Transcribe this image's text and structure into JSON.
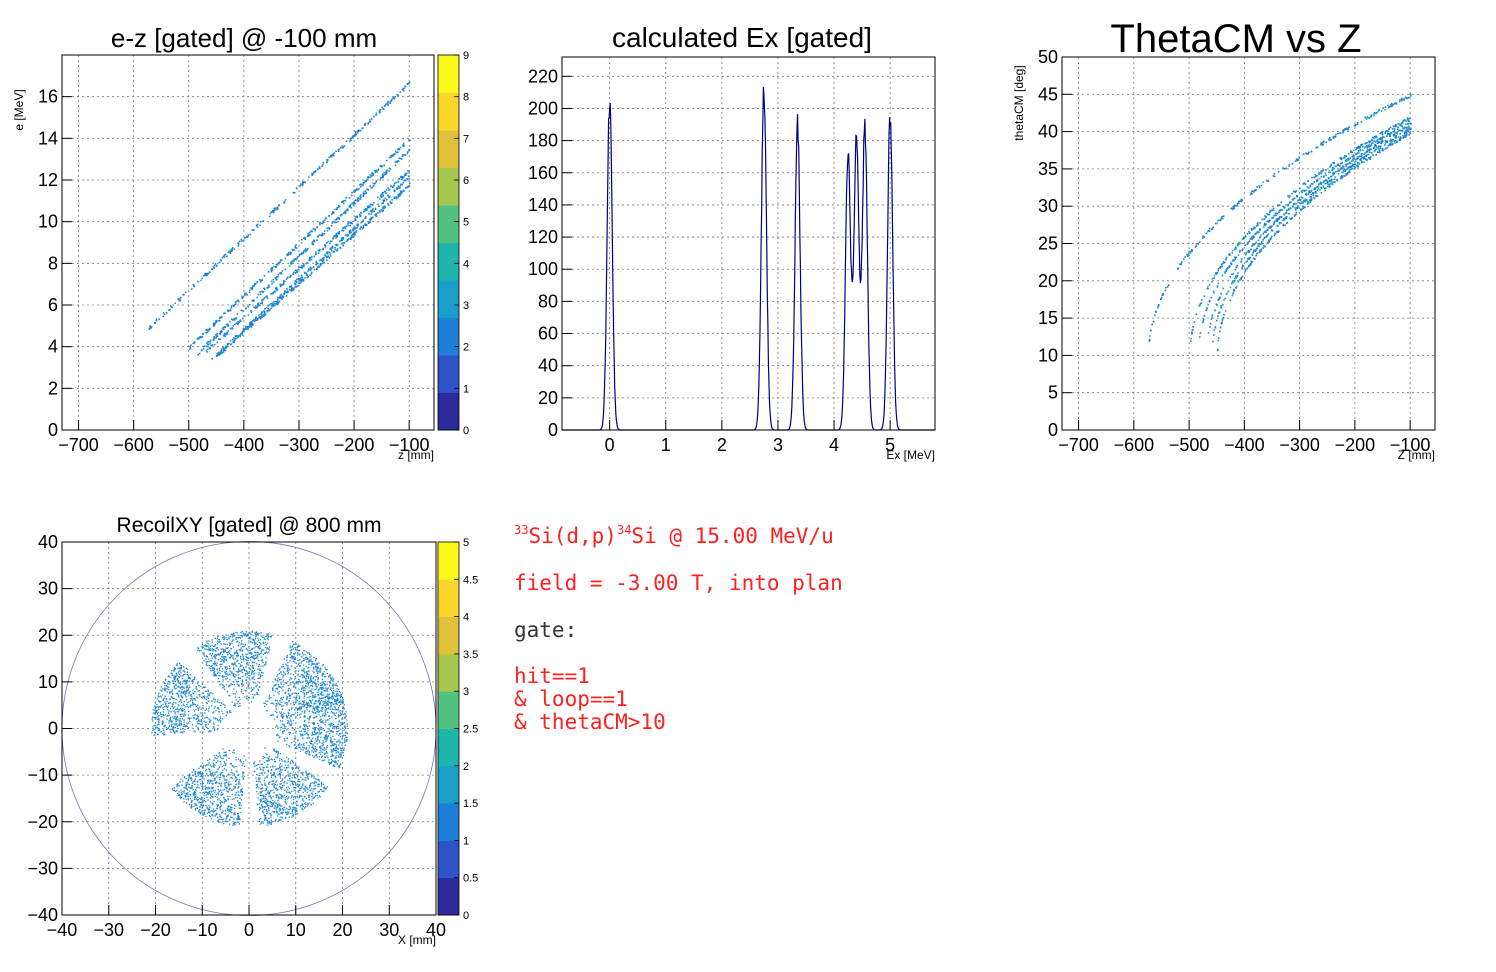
{
  "chart_data": [
    {
      "id": "ez",
      "type": "heatmap",
      "title": "e-z [gated] @  -100 mm",
      "xlabel": "z [mm]",
      "ylabel": "e [MeV]",
      "xlim": [
        -730,
        -55
      ],
      "ylim": [
        0,
        18
      ],
      "xticks": [
        -700,
        -600,
        -500,
        -400,
        -300,
        -200,
        -100
      ],
      "yticks": [
        0,
        2,
        4,
        6,
        8,
        10,
        12,
        14,
        16
      ],
      "zrange": [
        0,
        9
      ],
      "palette_ticks": [
        0,
        1,
        2,
        3,
        4,
        5,
        6,
        7,
        8,
        9
      ],
      "grid": true,
      "series": [
        {
          "x": [
            -575,
            -100
          ],
          "y": [
            4.9,
            16.7
          ]
        },
        {
          "x": [
            -500,
            -100
          ],
          "y": [
            4.0,
            14.0
          ]
        },
        {
          "x": [
            -485,
            -100
          ],
          "y": [
            3.7,
            13.5
          ]
        },
        {
          "x": [
            -470,
            -100
          ],
          "y": [
            3.8,
            12.5
          ]
        },
        {
          "x": [
            -460,
            -100
          ],
          "y": [
            3.4,
            12.2
          ]
        },
        {
          "x": [
            -450,
            -100
          ],
          "y": [
            3.6,
            11.8
          ]
        }
      ]
    },
    {
      "id": "ex",
      "type": "line",
      "title": "calculated Ex [gated]",
      "xlabel": "Ex [MeV]",
      "ylabel": "",
      "xlim": [
        -0.85,
        5.8
      ],
      "ylim": [
        0,
        232
      ],
      "xticks": [
        0,
        1,
        2,
        3,
        4,
        5
      ],
      "yticks": [
        0,
        20,
        40,
        60,
        80,
        100,
        120,
        140,
        160,
        180,
        200,
        220
      ],
      "grid": true,
      "peaks": [
        {
          "center": 0.0,
          "height": 215
        },
        {
          "center": 2.75,
          "height": 220
        },
        {
          "center": 3.35,
          "height": 198
        },
        {
          "center": 4.25,
          "height": 182
        },
        {
          "center": 4.4,
          "height": 190
        },
        {
          "center": 4.55,
          "height": 197
        },
        {
          "center": 5.0,
          "height": 204
        }
      ]
    },
    {
      "id": "theta",
      "type": "heatmap",
      "title": "ThetaCM vs Z",
      "xlabel": "Z [mm]",
      "ylabel": "thetaCM [deg]",
      "xlim": [
        -730,
        -55
      ],
      "ylim": [
        0,
        50
      ],
      "xticks": [
        -700,
        -600,
        -500,
        -400,
        -300,
        -200,
        -100
      ],
      "yticks": [
        0,
        5,
        10,
        15,
        20,
        25,
        30,
        35,
        40,
        45,
        50
      ],
      "grid": true,
      "series": [
        {
          "x": [
            -575,
            -100
          ],
          "y": [
            10,
            45
          ]
        },
        {
          "x": [
            -500,
            -100
          ],
          "y": [
            10,
            42
          ]
        },
        {
          "x": [
            -485,
            -100
          ],
          "y": [
            10,
            41.5
          ]
        },
        {
          "x": [
            -470,
            -100
          ],
          "y": [
            10,
            41
          ]
        },
        {
          "x": [
            -460,
            -100
          ],
          "y": [
            10,
            40.5
          ]
        },
        {
          "x": [
            -450,
            -100
          ],
          "y": [
            10,
            40
          ]
        }
      ]
    },
    {
      "id": "recoil",
      "type": "scatter",
      "title": "RecoilXY [gated] @  800 mm",
      "xlabel": "X [mm]",
      "ylabel": "",
      "xlim": [
        -40,
        40
      ],
      "ylim": [
        -40,
        40
      ],
      "xticks": [
        -40,
        -30,
        -20,
        -10,
        0,
        10,
        20,
        30,
        40
      ],
      "yticks": [
        -40,
        -30,
        -20,
        -10,
        0,
        10,
        20,
        30,
        40
      ],
      "zrange": [
        0,
        5
      ],
      "palette_ticks": [
        "0",
        "0.5",
        "1",
        "1.5",
        "2",
        "2.5",
        "3",
        "3.5",
        "4",
        "4.5",
        "5"
      ],
      "grid": true,
      "circle_radius": 40,
      "sectors_deg": [
        100,
        160,
        240,
        300,
        0,
        40
      ],
      "sector_r": [
        5,
        21
      ]
    }
  ],
  "info": {
    "reaction": {
      "a": "33",
      "b": "Si(d,p)",
      "c": "34",
      "d": "Si @ 15.00 MeV/u"
    },
    "field": "field = -3.00 T, into plan",
    "gate_label": "gate:",
    "gates": [
      "hit==1",
      "& loop==1",
      "& thetaCM>10"
    ],
    "colors": {
      "red": "#ff2020",
      "black": "#333333"
    }
  },
  "colors": {
    "palette": [
      "#2a2a9a",
      "#2e52c8",
      "#1e7fd8",
      "#1a9fca",
      "#1fb5aa",
      "#53c281",
      "#a6c650",
      "#dfc23a",
      "#f8d62a",
      "#fbfa18"
    ],
    "hist_line": "#000080",
    "circle": "#7777bb"
  }
}
